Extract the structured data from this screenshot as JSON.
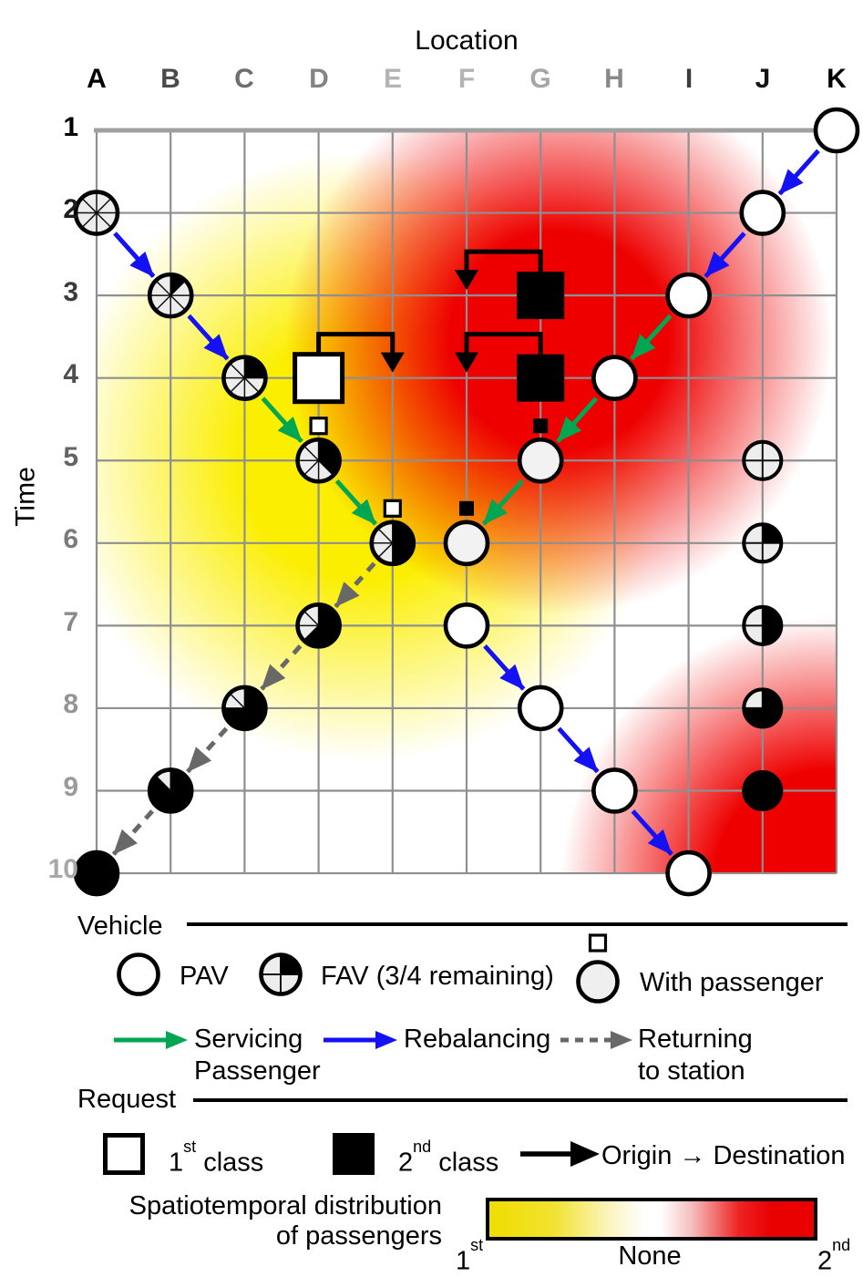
{
  "titles": {
    "location": "Location",
    "time": "Time"
  },
  "grid": {
    "columns": [
      "A",
      "B",
      "C",
      "D",
      "E",
      "F",
      "G",
      "H",
      "I",
      "J",
      "K"
    ],
    "rows": [
      "1",
      "2",
      "3",
      "4",
      "5",
      "6",
      "7",
      "8",
      "9",
      "10"
    ]
  },
  "diagram": {
    "heatmap": [
      {
        "col": 3.6,
        "row": 4.95,
        "r": 335,
        "core": 0.4,
        "color": "#fbee00",
        "class": "1st"
      },
      {
        "col": 6.25,
        "row": 3.55,
        "r": 300,
        "core": 0.4,
        "color": "#ee0000",
        "class": "2nd"
      },
      {
        "col": 9.85,
        "row": 10.1,
        "r": 290,
        "core": 0.42,
        "color": "#ee0000",
        "class": "2nd"
      }
    ],
    "vehicles": [
      {
        "loc": "K",
        "t": 1,
        "type": "pav"
      },
      {
        "loc": "J",
        "t": 2,
        "type": "pav"
      },
      {
        "loc": "I",
        "t": 3,
        "type": "pav"
      },
      {
        "loc": "H",
        "t": 4,
        "type": "pav"
      },
      {
        "loc": "G",
        "t": 5,
        "type": "pav_passenger"
      },
      {
        "loc": "F",
        "t": 6,
        "type": "pav_passenger"
      },
      {
        "loc": "F",
        "t": 7,
        "type": "pav"
      },
      {
        "loc": "G",
        "t": 8,
        "type": "pav"
      },
      {
        "loc": "H",
        "t": 9,
        "type": "pav"
      },
      {
        "loc": "I",
        "t": 10,
        "type": "pav"
      },
      {
        "loc": "A",
        "t": 2,
        "type": "fav8",
        "used": 0
      },
      {
        "loc": "B",
        "t": 3,
        "type": "fav8",
        "used": 1
      },
      {
        "loc": "C",
        "t": 4,
        "type": "fav8",
        "used": 2
      },
      {
        "loc": "D",
        "t": 5,
        "type": "fav8",
        "used": 3
      },
      {
        "loc": "E",
        "t": 6,
        "type": "fav8",
        "used": 4
      },
      {
        "loc": "D",
        "t": 7,
        "type": "fav8",
        "used": 5
      },
      {
        "loc": "C",
        "t": 8,
        "type": "fav8",
        "used": 6
      },
      {
        "loc": "B",
        "t": 9,
        "type": "fav8",
        "used": 7
      },
      {
        "loc": "A",
        "t": 10,
        "type": "fav8",
        "used": 8
      },
      {
        "loc": "J",
        "t": 5,
        "type": "fav4",
        "used": 0
      },
      {
        "loc": "J",
        "t": 6,
        "type": "fav4",
        "used": 1
      },
      {
        "loc": "J",
        "t": 7,
        "type": "fav4",
        "used": 2
      },
      {
        "loc": "J",
        "t": 8,
        "type": "fav4",
        "used": 3
      },
      {
        "loc": "J",
        "t": 9,
        "type": "fav4",
        "used": 4
      }
    ],
    "passenger_markers": [
      {
        "loc": "D",
        "t": 5,
        "class": 1
      },
      {
        "loc": "E",
        "t": 6,
        "class": 1
      },
      {
        "loc": "G",
        "t": 5,
        "class": 2
      },
      {
        "loc": "F",
        "t": 6,
        "class": 2
      }
    ],
    "arrows": [
      {
        "from": [
          "A",
          2
        ],
        "to": [
          "B",
          3
        ],
        "type": "rebalancing"
      },
      {
        "from": [
          "B",
          3
        ],
        "to": [
          "C",
          4
        ],
        "type": "rebalancing"
      },
      {
        "from": [
          "C",
          4
        ],
        "to": [
          "D",
          5
        ],
        "type": "servicing"
      },
      {
        "from": [
          "D",
          5
        ],
        "to": [
          "E",
          6
        ],
        "type": "servicing"
      },
      {
        "from": [
          "E",
          6
        ],
        "to": [
          "D",
          7
        ],
        "type": "returning"
      },
      {
        "from": [
          "D",
          7
        ],
        "to": [
          "C",
          8
        ],
        "type": "returning"
      },
      {
        "from": [
          "C",
          8
        ],
        "to": [
          "B",
          9
        ],
        "type": "returning"
      },
      {
        "from": [
          "B",
          9
        ],
        "to": [
          "A",
          10
        ],
        "type": "returning"
      },
      {
        "from": [
          "K",
          1
        ],
        "to": [
          "J",
          2
        ],
        "type": "rebalancing"
      },
      {
        "from": [
          "J",
          2
        ],
        "to": [
          "I",
          3
        ],
        "type": "rebalancing"
      },
      {
        "from": [
          "I",
          3
        ],
        "to": [
          "H",
          4
        ],
        "type": "servicing"
      },
      {
        "from": [
          "H",
          4
        ],
        "to": [
          "G",
          5
        ],
        "type": "servicing"
      },
      {
        "from": [
          "G",
          5
        ],
        "to": [
          "F",
          6
        ],
        "type": "servicing"
      },
      {
        "from": [
          "F",
          7
        ],
        "to": [
          "G",
          8
        ],
        "type": "rebalancing"
      },
      {
        "from": [
          "G",
          8
        ],
        "to": [
          "H",
          9
        ],
        "type": "rebalancing"
      },
      {
        "from": [
          "H",
          9
        ],
        "to": [
          "I",
          10
        ],
        "type": "rebalancing"
      }
    ],
    "requests": [
      {
        "origin": "D",
        "dest": "E",
        "time": 4,
        "class": 1
      },
      {
        "origin": "G",
        "dest": "F",
        "time": 3,
        "class": 2
      },
      {
        "origin": "G",
        "dest": "F",
        "time": 4,
        "class": 2
      }
    ]
  },
  "legend": {
    "vehicle_header": "Vehicle",
    "pav": "PAV",
    "fav": "FAV (3/4 remaining)",
    "with_passenger": "With passenger",
    "servicing_1": "Servicing",
    "servicing_2": "Passenger",
    "rebalancing": "Rebalancing",
    "returning_1": "Returning",
    "returning_2": "to station",
    "request_header": "Request",
    "class1": {
      "base": "1",
      "sup": "st",
      "rest": " class"
    },
    "class2": {
      "base": "2",
      "sup": "nd",
      "rest": " class"
    },
    "origin_dest": "Origin → Destination",
    "dist_1": "Spatiotemporal distribution",
    "dist_2": "of passengers",
    "scale": {
      "left": {
        "base": "1",
        "sup": "st"
      },
      "mid": "None",
      "right": {
        "base": "2",
        "sup": "nd"
      }
    }
  },
  "colors": {
    "servicing": "#00a651",
    "rebalancing": "#1411f5",
    "returning": "#686868",
    "grid_line": "#8f8f8f",
    "heat_yellow": "#fbee00",
    "heat_red": "#ee0000",
    "fav_remaining_fill": "#ededed",
    "passenger_fill": "#f2f2f2"
  }
}
